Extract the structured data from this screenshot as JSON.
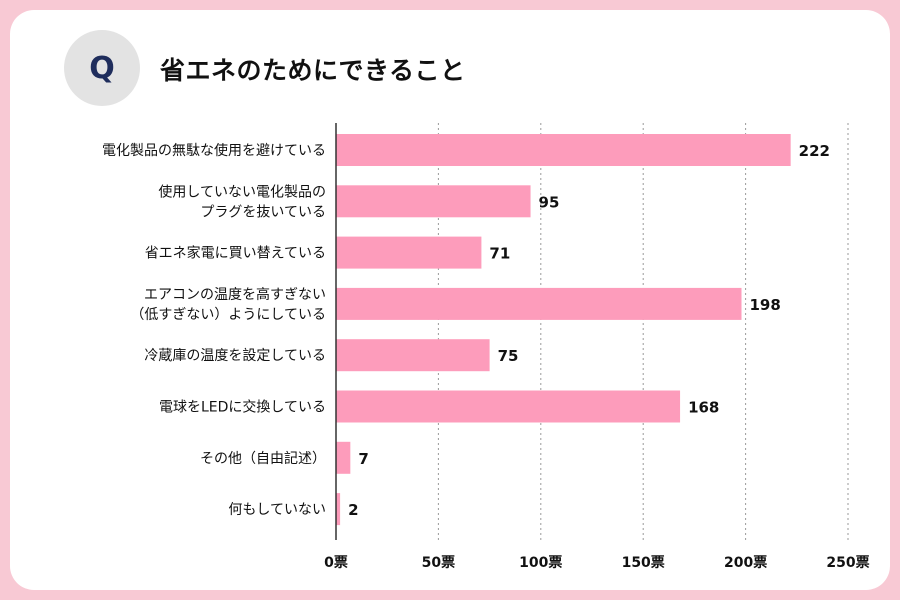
{
  "header": {
    "badge": "Q",
    "title": "省エネのためにできること"
  },
  "colors": {
    "bar": "#fd9cbb",
    "grid": "#9a9a9a",
    "axis": "#333333",
    "text": "#111111"
  },
  "chart_data": {
    "type": "bar",
    "orientation": "horizontal",
    "categories": [
      [
        "電化製品の無駄な使用を避けている"
      ],
      [
        "使用していない電化製品の",
        "プラグを抜いている"
      ],
      [
        "省エネ家電に買い替えている"
      ],
      [
        "エアコンの温度を高すぎない",
        "（低すぎない）ようにしている"
      ],
      [
        "冷蔵庫の温度を設定している"
      ],
      [
        "電球をLEDに交換している"
      ],
      [
        "その他（自由記述）"
      ],
      [
        "何もしていない"
      ]
    ],
    "values": [
      222,
      95,
      71,
      198,
      75,
      168,
      7,
      2
    ],
    "xlim": [
      0,
      250
    ],
    "ticks": [
      0,
      50,
      100,
      150,
      200,
      250
    ],
    "tick_labels": [
      "0票",
      "50票",
      "100票",
      "150票",
      "200票",
      "250票"
    ],
    "grid": true,
    "title": "省エネのためにできること"
  }
}
